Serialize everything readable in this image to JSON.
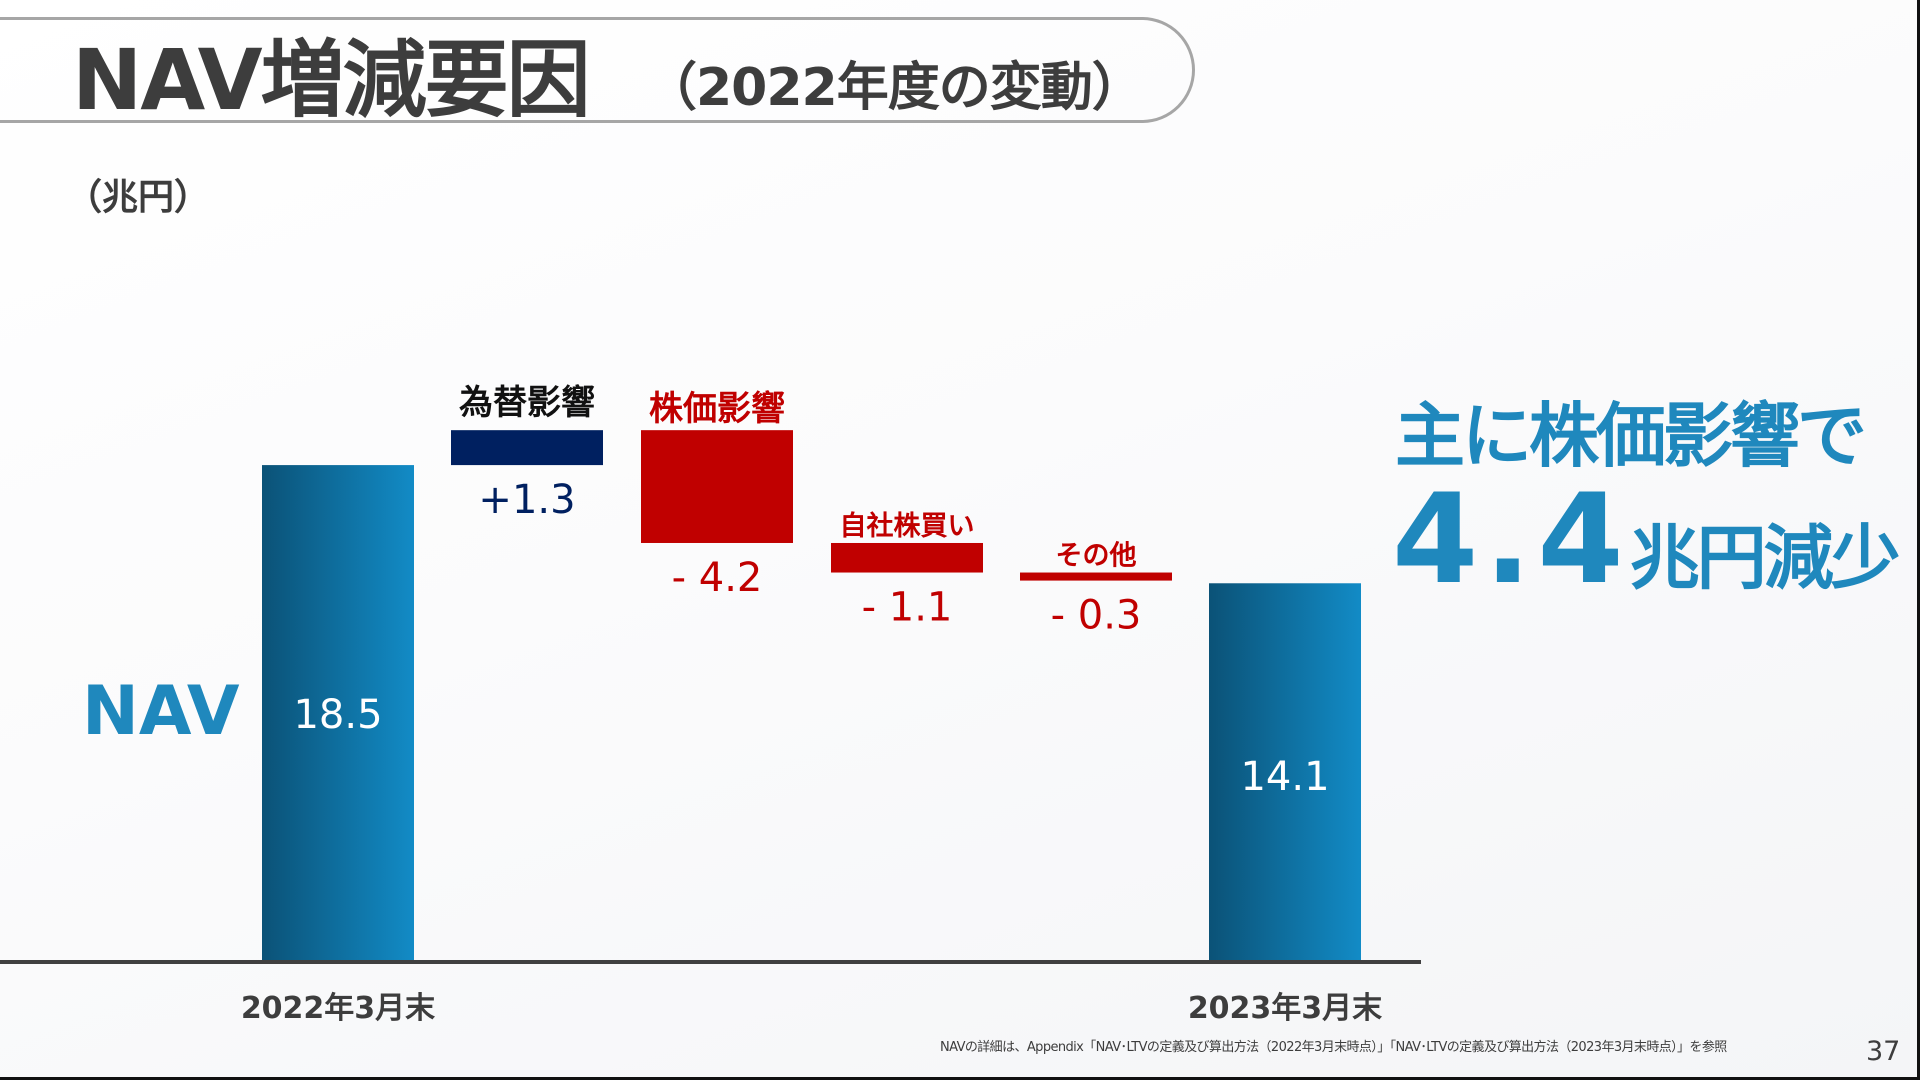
{
  "header": {
    "title": "NAV増減要因",
    "subtitle": "（2022年度の変動）"
  },
  "unit_label": "（兆円）",
  "nav_label": "NAV",
  "headline": {
    "line1": "主に株価影響で",
    "amount": "4.4",
    "suffix": "兆円減少"
  },
  "footnote": "NAVの詳細は、Appendix「NAV･LTVの定義及び算出方法（2022年3月末時点）」「NAV･LTVの定義及び算出方法（2023年3月末時点）」を参照",
  "page_number": "37",
  "colors": {
    "nav_dark": "#0b5277",
    "nav_light": "#128bc6",
    "positive": "#002060",
    "negative": "#c00000",
    "headline": "#1f88bd",
    "axis": "#404040"
  },
  "chart_data": {
    "type": "waterfall",
    "unit": "兆円",
    "ylim": [
      0,
      20
    ],
    "items": [
      {
        "category": "2022年3月末",
        "kind": "total",
        "value": 18.5,
        "label": "18.5",
        "name": ""
      },
      {
        "category": "",
        "kind": "delta",
        "value": 1.3,
        "label": "+1.3",
        "name": "為替影響"
      },
      {
        "category": "",
        "kind": "delta",
        "value": -4.2,
        "label": "- 4.2",
        "name": "株価影響"
      },
      {
        "category": "",
        "kind": "delta",
        "value": -1.1,
        "label": "- 1.1",
        "name": "自社株買い"
      },
      {
        "category": "",
        "kind": "delta",
        "value": -0.3,
        "label": "- 0.3",
        "name": "その他"
      },
      {
        "category": "2023年3月末",
        "kind": "total",
        "value": 14.1,
        "label": "14.1",
        "name": ""
      }
    ]
  }
}
